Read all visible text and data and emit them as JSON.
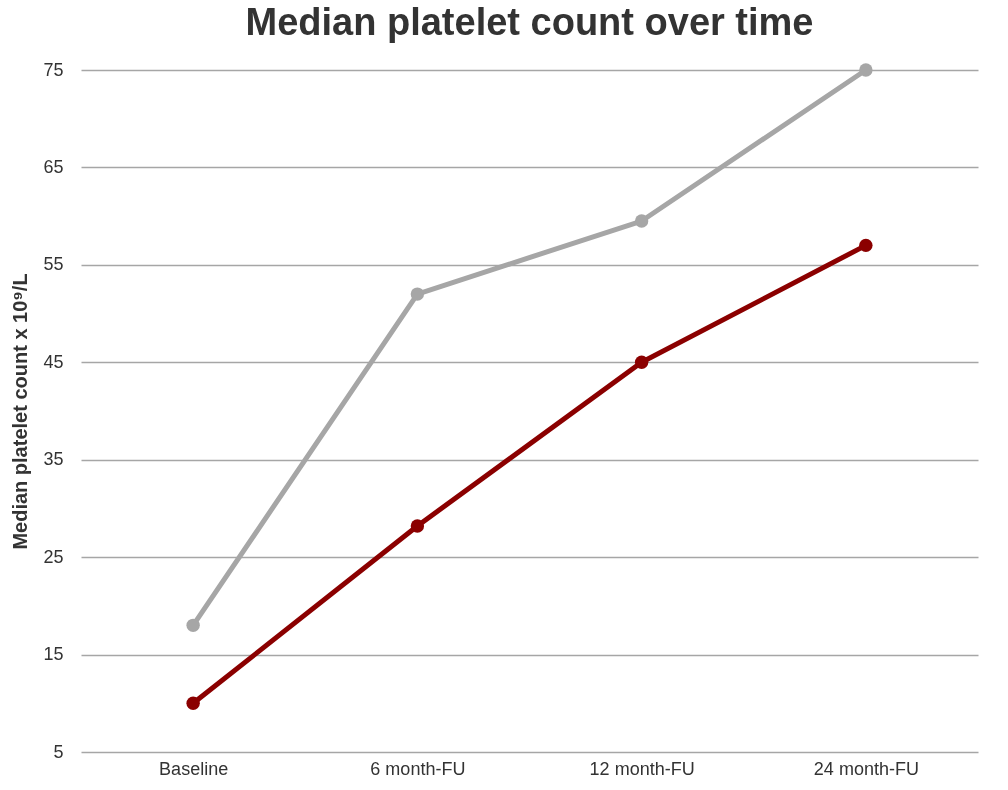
{
  "chart_data": {
    "type": "line",
    "title": "Median platelet count over time",
    "ylabel": "Median platelet count x 10⁹/L",
    "categories": [
      "Baseline",
      "6 month-FU",
      "12 month-FU",
      "24 month-FU"
    ],
    "series": [
      {
        "color": "#a6a6a6",
        "values": [
          18,
          52,
          59.5,
          75
        ]
      },
      {
        "color": "#8b0000",
        "values": [
          10,
          28.2,
          45,
          57
        ]
      }
    ],
    "ylim": [
      5,
      75
    ],
    "yticks": [
      5,
      15,
      25,
      35,
      45,
      55,
      65,
      75
    ],
    "grid": "y",
    "marker": "circle",
    "line_style": "solid"
  }
}
